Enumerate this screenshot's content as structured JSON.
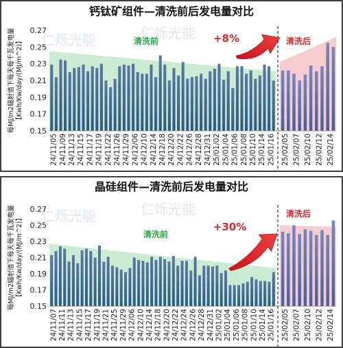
{
  "chart_data": [
    {
      "type": "bar",
      "title": "钙钛矿组件—清洗前后发电量对比",
      "ylabel": "每MJ/m2辐射值下每天每千瓦发电量\n【Kwh/Kw/day/(MJ/m^2)】",
      "ylim": [
        0.15,
        0.27
      ],
      "yticks": [
        "0.15",
        "0.17",
        "0.19",
        "0.21",
        "0.23",
        "0.25",
        "0.27"
      ],
      "before_label": "清洗前",
      "after_label": "清洗后",
      "change_label": "+8%",
      "watermark": "仁烁光能",
      "xticks": [
        "24/11/05",
        "24/11/09",
        "24/11/13",
        "24/11/15",
        "24/11/17",
        "24/11/19",
        "24/11/22",
        "24/11/26",
        "24/11/29",
        "24/12/06",
        "24/12/10",
        "24/12/14",
        "24/12/18",
        "24/12/20",
        "24/12/22",
        "24/12/26",
        "24/12/28",
        "24/12/31",
        "25/01/02",
        "25/01/04",
        "25/01/06",
        "25/01/08",
        "25/01/10",
        "25/01/14",
        "25/01/16",
        "25/02/05",
        "25/02/07",
        "25/02/10",
        "25/02/12",
        "25/02/14"
      ],
      "before_values": [
        0.229,
        0.214,
        0.235,
        0.234,
        0.22,
        0.225,
        0.226,
        0.229,
        0.221,
        0.227,
        0.225,
        0.23,
        0.21,
        0.202,
        0.212,
        0.227,
        0.229,
        0.228,
        0.23,
        0.22,
        0.218,
        0.218,
        0.229,
        0.214,
        0.24,
        0.229,
        0.21,
        0.225,
        0.216,
        0.232,
        0.212,
        0.214,
        0.215,
        0.218,
        0.212,
        0.221,
        0.224,
        0.23,
        0.211,
        0.221,
        0.201,
        0.227,
        0.227,
        0.218,
        0.222,
        0.212,
        0.216,
        0.229,
        0.227,
        0.21
      ],
      "after_values": [
        0.222,
        0.222,
        0.218,
        0.21,
        0.217,
        0.228,
        0.221,
        0.227,
        0.255,
        0.25
      ]
    },
    {
      "type": "bar",
      "title": "晶硅组件—清洗前后发电量对比",
      "ylabel": "每MJ/m2辐射值下每天每千瓦发电量\n【Kwh/Kw/day/(MJ/m^2)】",
      "ylim": [
        0.15,
        0.27
      ],
      "yticks": [
        "0.15",
        "0.17",
        "0.19",
        "0.21",
        "0.23",
        "0.25",
        "0.27"
      ],
      "before_label": "清洗前",
      "after_label": "清洗后",
      "change_label": "+30%",
      "watermark": "仁烁光能",
      "xticks": [
        "24/11/07",
        "24/11/11",
        "24/11/13",
        "24/11/15",
        "24/11/17",
        "24/11/19",
        "24/11/21",
        "24/11/25",
        "24/11/29",
        "24/12/06",
        "24/12/10",
        "24/12/14",
        "24/12/18",
        "24/12/20",
        "24/12/22",
        "24/12/24",
        "24/12/26",
        "24/12/28",
        "24/12/31",
        "25/01/02",
        "25/01/04",
        "25/01/06",
        "25/01/08",
        "25/01/10",
        "25/01/14",
        "25/01/16",
        "25/02/05",
        "25/02/07",
        "25/02/10",
        "25/02/12",
        "25/02/14"
      ],
      "before_values": [
        0.213,
        0.218,
        0.224,
        0.221,
        0.205,
        0.213,
        0.203,
        0.219,
        0.221,
        0.218,
        0.21,
        0.225,
        0.205,
        0.211,
        0.2,
        0.198,
        0.195,
        0.192,
        0.197,
        0.21,
        0.207,
        0.206,
        0.204,
        0.211,
        0.207,
        0.211,
        0.208,
        0.205,
        0.212,
        0.2,
        0.206,
        0.206,
        0.194,
        0.211,
        0.188,
        0.2,
        0.2,
        0.199,
        0.2,
        0.191,
        0.194,
        0.176,
        0.176,
        0.176,
        0.178,
        0.18,
        0.186,
        0.183,
        0.181,
        0.181,
        0.18,
        0.192
      ],
      "after_values": [
        0.242,
        0.24,
        0.25,
        0.239,
        0.245,
        0.243,
        0.238,
        0.244,
        0.238,
        0.256
      ]
    }
  ]
}
